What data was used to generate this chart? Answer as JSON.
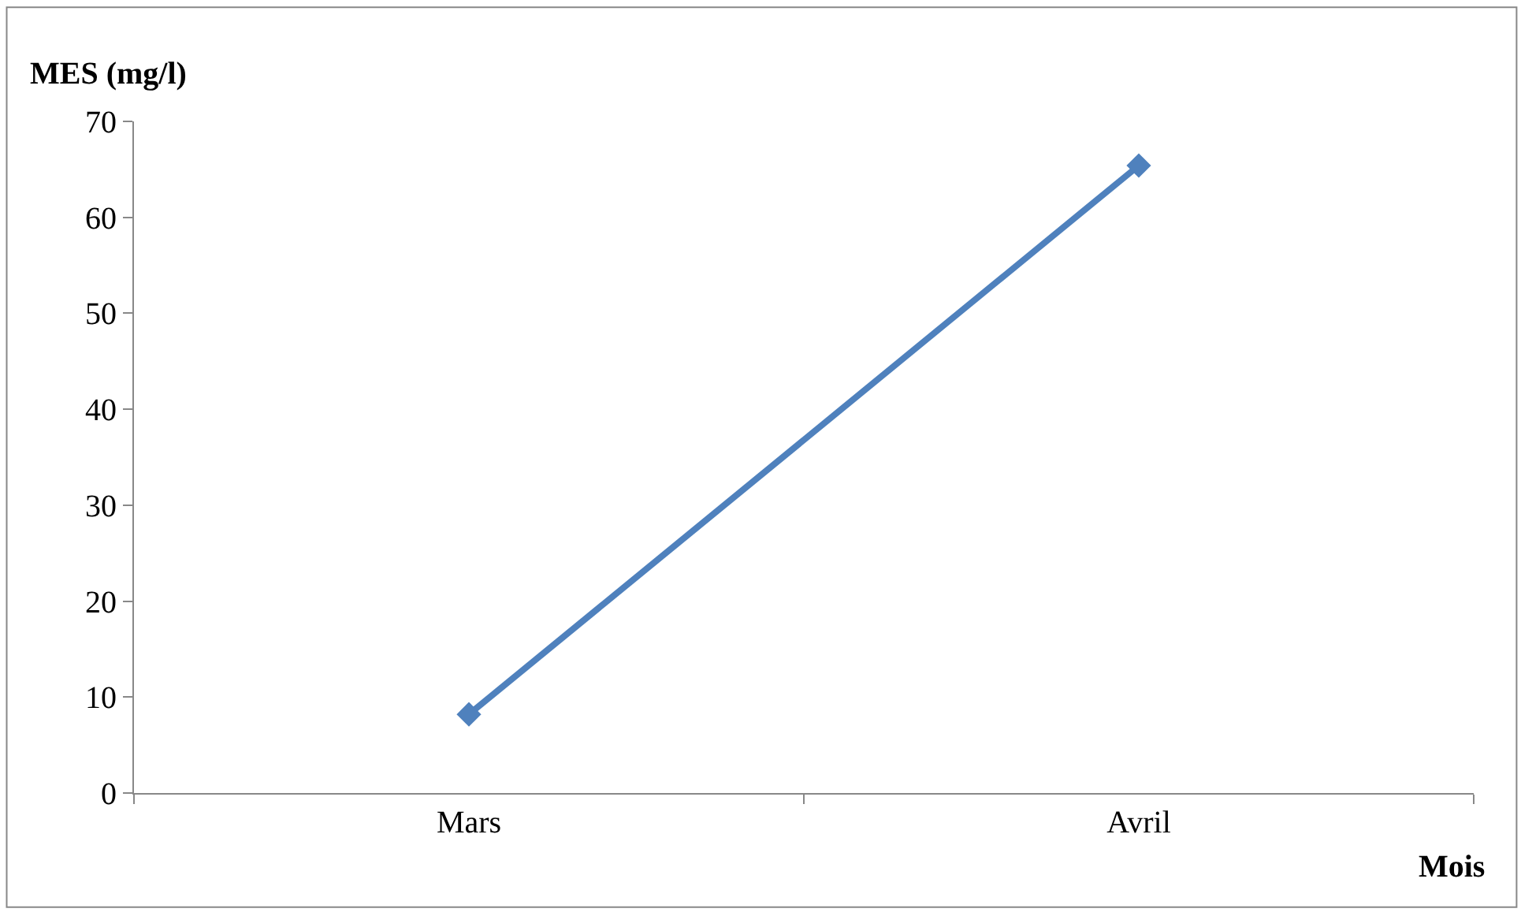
{
  "chart_data": {
    "type": "line",
    "xlabel": "Mois",
    "ylabel": "MES (mg/l)",
    "categories": [
      "Mars",
      "Avril"
    ],
    "series": [
      {
        "color": "#4f81bd",
        "values": [
          8.2,
          65.4
        ]
      }
    ],
    "ylim": [
      0,
      70
    ],
    "yticks": [
      0,
      10,
      20,
      30,
      40,
      50,
      60,
      70
    ],
    "legend": false,
    "marker": "diamond",
    "line_style": "solid"
  }
}
